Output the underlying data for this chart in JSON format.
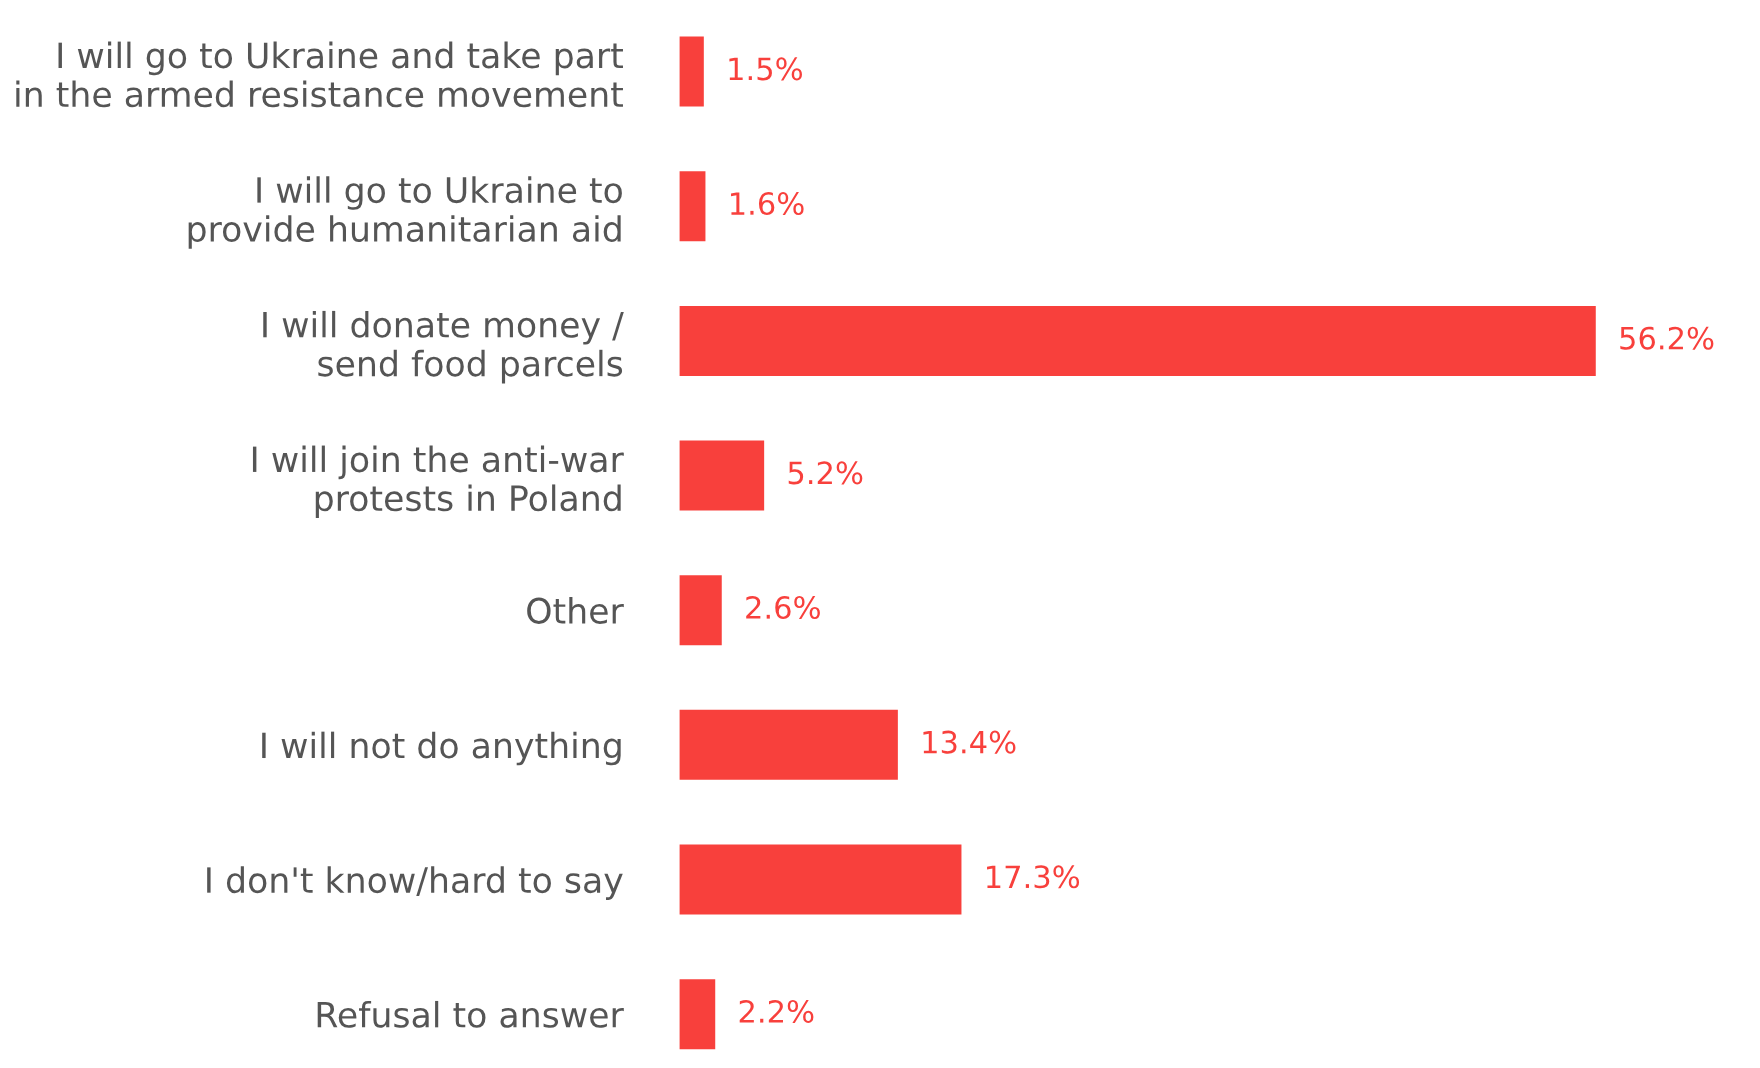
{
  "chart_data": {
    "type": "bar",
    "orientation": "horizontal",
    "tick_labels": "y",
    "grid": false,
    "legend": false,
    "categories": [
      "I will go to Ukraine and take part\nin the armed resistance movement",
      "I will go to Ukraine to\nprovide humanitarian aid",
      "I will donate money /\nsend food parcels",
      "I will join the anti-war\nprotests in Poland",
      "Other",
      "I will not do anything",
      "I don't know/hard to say",
      "Refusal to answer"
    ],
    "values": [
      1.5,
      1.6,
      56.2,
      5.2,
      2.6,
      13.4,
      17.3,
      2.2
    ],
    "value_labels": [
      "1.5%",
      "1.6%",
      "56.2%",
      "5.2%",
      "2.6%",
      "13.4%",
      "17.3%",
      "2.2%"
    ],
    "color": "#f8403c"
  }
}
